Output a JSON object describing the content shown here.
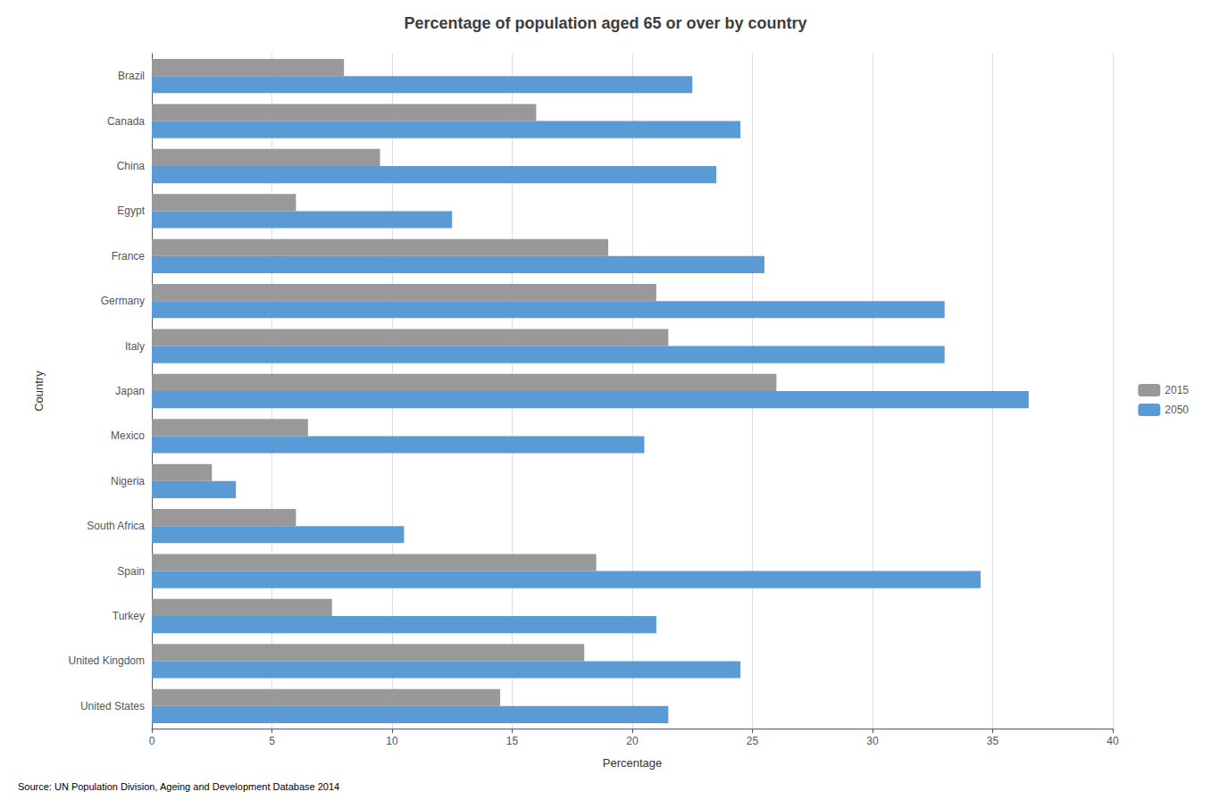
{
  "chart_data": {
    "type": "bar",
    "orientation": "horizontal",
    "title": "Percentage of population aged 65 or over by country",
    "xlabel": "Percentage",
    "ylabel": "Country",
    "annotations": [
      "Source: UN Population Division, Ageing and Development Database 2014"
    ],
    "categories": [
      "Brazil",
      "Canada",
      "China",
      "Egypt",
      "France",
      "Germany",
      "Italy",
      "Japan",
      "Mexico",
      "Nigeria",
      "South Africa",
      "Spain",
      "Turkey",
      "United Kingdom",
      "United States"
    ],
    "series": [
      {
        "name": "2015",
        "color": "#999999",
        "values": [
          8.0,
          16.0,
          9.5,
          6.0,
          19.0,
          21.0,
          21.5,
          26.0,
          6.5,
          2.5,
          6.0,
          18.5,
          7.5,
          18.0,
          14.5
        ]
      },
      {
        "name": "2050",
        "color": "#5B9BD5",
        "values": [
          22.5,
          24.5,
          23.5,
          12.5,
          25.5,
          33.0,
          33.0,
          36.5,
          20.5,
          3.5,
          10.5,
          34.5,
          21.0,
          24.5,
          21.5
        ]
      }
    ],
    "xlim": [
      0,
      40
    ],
    "xticks": [
      0,
      5,
      10,
      15,
      20,
      25,
      30,
      35,
      40
    ],
    "grid": true,
    "legend": "right"
  }
}
